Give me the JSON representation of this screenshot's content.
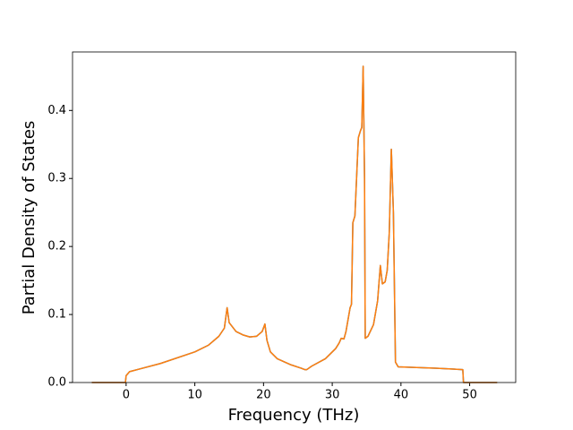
{
  "chart_data": {
    "type": "line",
    "xlabel": "Frequency (THz)",
    "ylabel": "Partial Density of States",
    "x": [
      -5,
      -0.1,
      0,
      0.5,
      2,
      5,
      10,
      12,
      13.5,
      14.3,
      14.7,
      15,
      16,
      17,
      18,
      19,
      19.8,
      20.2,
      20.5,
      21,
      22,
      24,
      25.5,
      26,
      26.3,
      27,
      29,
      30.5,
      31,
      31.3,
      31.7,
      32,
      32.6,
      32.8,
      33,
      33.3,
      33.8,
      34.1,
      34.3,
      34.5,
      34.7,
      34.8,
      35.2,
      36,
      36.6,
      37,
      37.3,
      37.7,
      38,
      38.3,
      38.6,
      38.9,
      39.2,
      39.6,
      45,
      49,
      49.1,
      54
    ],
    "series": [
      {
        "color": "#1f77b4",
        "values": [
          0,
          0,
          0.01,
          0.016,
          0.02,
          0.028,
          0.045,
          0.055,
          0.068,
          0.08,
          0.11,
          0.088,
          0.075,
          0.07,
          0.067,
          0.068,
          0.075,
          0.086,
          0.062,
          0.045,
          0.035,
          0.026,
          0.021,
          0.019,
          0.019,
          0.024,
          0.035,
          0.05,
          0.058,
          0.065,
          0.064,
          0.075,
          0.11,
          0.115,
          0.235,
          0.245,
          0.36,
          0.37,
          0.375,
          0.465,
          0.3,
          0.065,
          0.068,
          0.085,
          0.12,
          0.172,
          0.145,
          0.148,
          0.165,
          0.22,
          0.343,
          0.25,
          0.03,
          0.023,
          0.021,
          0.019,
          0,
          0
        ]
      },
      {
        "color": "#ff7f0e",
        "values": [
          0,
          0,
          0.01,
          0.016,
          0.02,
          0.028,
          0.045,
          0.055,
          0.068,
          0.08,
          0.11,
          0.088,
          0.075,
          0.07,
          0.067,
          0.068,
          0.075,
          0.086,
          0.062,
          0.045,
          0.035,
          0.026,
          0.021,
          0.019,
          0.019,
          0.024,
          0.035,
          0.05,
          0.058,
          0.065,
          0.064,
          0.075,
          0.11,
          0.115,
          0.235,
          0.245,
          0.36,
          0.37,
          0.375,
          0.465,
          0.3,
          0.065,
          0.068,
          0.085,
          0.12,
          0.172,
          0.145,
          0.148,
          0.165,
          0.22,
          0.343,
          0.25,
          0.03,
          0.023,
          0.021,
          0.019,
          0,
          0
        ]
      }
    ],
    "xlim": [
      -7.8,
      56.7
    ],
    "xticks": [
      0,
      10,
      20,
      30,
      40,
      50
    ],
    "ylim": [
      0,
      0.486
    ],
    "yticks": [
      {
        "value": 0,
        "label": "0.0"
      },
      0.1,
      0.2,
      0.3,
      0.4
    ]
  }
}
